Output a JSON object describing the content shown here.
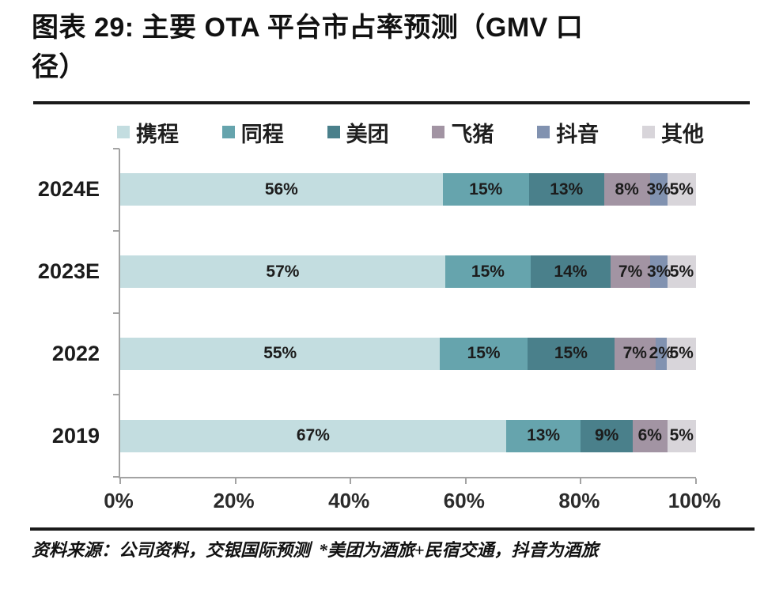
{
  "title": {
    "text": "图表 29: 主要 OTA 平台市占率预测（GMV 口径）",
    "lines": [
      "图表 29: 主要 OTA 平台市占率预测（GMV 口",
      "径）"
    ]
  },
  "chart_data": {
    "type": "bar",
    "orientation": "horizontal",
    "stacked": true,
    "title": "主要 OTA 平台市占率预测（GMV 口径）",
    "value_unit": "%",
    "categories": [
      "2024E",
      "2023E",
      "2022",
      "2019"
    ],
    "series": [
      {
        "name": "携程",
        "color": "#c3dde0",
        "values": [
          56,
          57,
          55,
          67
        ]
      },
      {
        "name": "同程",
        "color": "#66a4ad",
        "values": [
          15,
          15,
          15,
          13
        ]
      },
      {
        "name": "美团",
        "color": "#4a808b",
        "values": [
          13,
          14,
          15,
          9
        ]
      },
      {
        "name": "飞猪",
        "color": "#a294a3",
        "values": [
          8,
          7,
          7,
          6
        ]
      },
      {
        "name": "抖音",
        "color": "#8192b0",
        "values": [
          3,
          3,
          2,
          0
        ]
      },
      {
        "name": "其他",
        "color": "#d8d5da",
        "values": [
          5,
          5,
          5,
          5
        ]
      }
    ],
    "x_axis": {
      "tick_labels": [
        "0%",
        "20%",
        "40%",
        "60%",
        "80%",
        "100%"
      ],
      "range": [
        0,
        100
      ],
      "grid": false
    },
    "legend_position": "top",
    "data_labels_shown": true,
    "axis_color": "#a3a3a3"
  },
  "footer": {
    "source_note": "资料来源：公司资料，交银国际预测  *美团为酒旅+民宿交通，抖音为酒旅"
  }
}
